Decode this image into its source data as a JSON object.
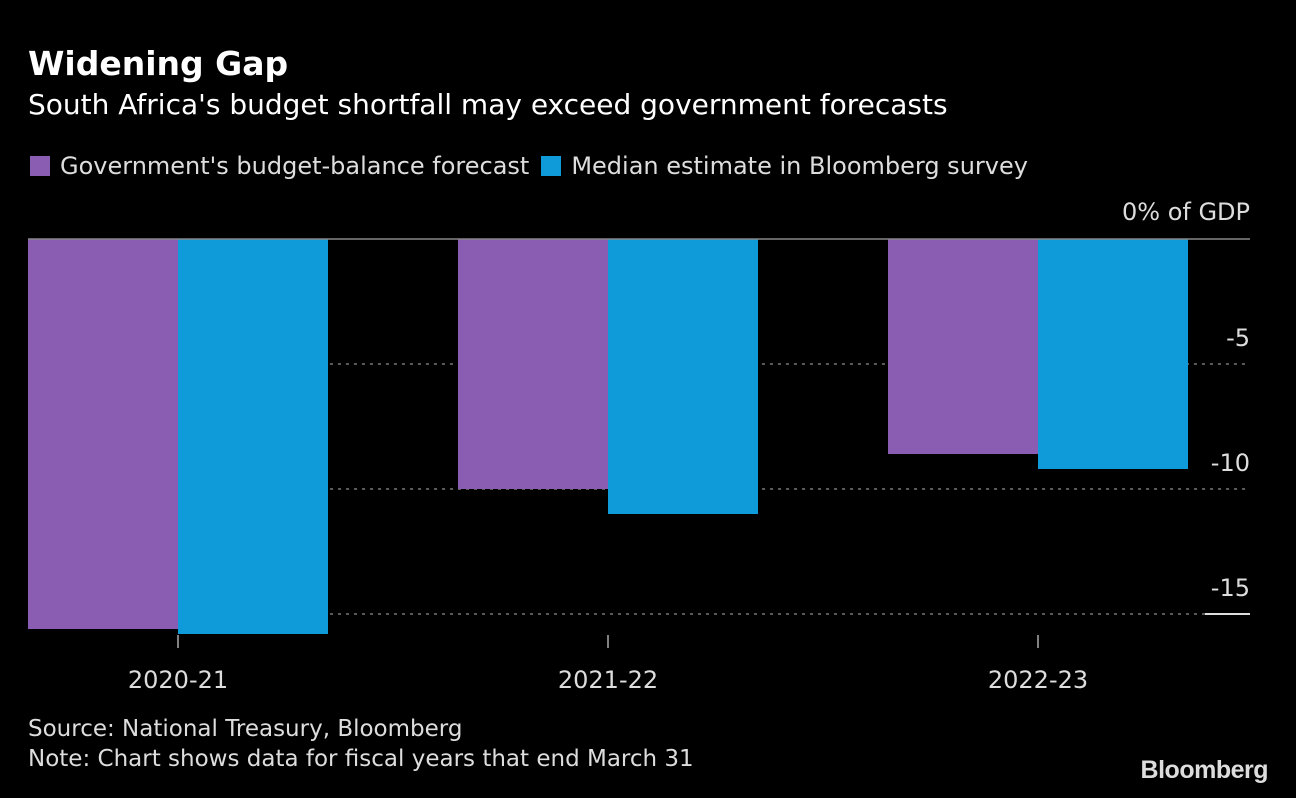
{
  "chart_data": {
    "type": "bar",
    "title": "Widening Gap",
    "subtitle": "South Africa's budget shortfall may exceed government forecasts",
    "categories": [
      "2020-21",
      "2021-22",
      "2022-23"
    ],
    "series": [
      {
        "name": "Government's budget-balance forecast",
        "color": "#8a5db3",
        "values": [
          -15.6,
          -10.0,
          -8.6
        ]
      },
      {
        "name": "Median estimate in Bloomberg survey",
        "color": "#0f9bd9",
        "values": [
          -15.8,
          -11.0,
          -9.2
        ]
      }
    ],
    "ylabel": "% of GDP",
    "yticks": [
      {
        "value": 0,
        "label": "0% of GDP"
      },
      {
        "value": -5,
        "label": "-5"
      },
      {
        "value": -10,
        "label": "-10"
      },
      {
        "value": -15,
        "label": "-15"
      }
    ],
    "ylim": [
      -16,
      0
    ],
    "grid": true,
    "legend": "top-left"
  },
  "footer": {
    "source": "Source: National Treasury, Bloomberg",
    "note": "Note: Chart shows data for fiscal years that end March 31",
    "logo": "Bloomberg"
  }
}
